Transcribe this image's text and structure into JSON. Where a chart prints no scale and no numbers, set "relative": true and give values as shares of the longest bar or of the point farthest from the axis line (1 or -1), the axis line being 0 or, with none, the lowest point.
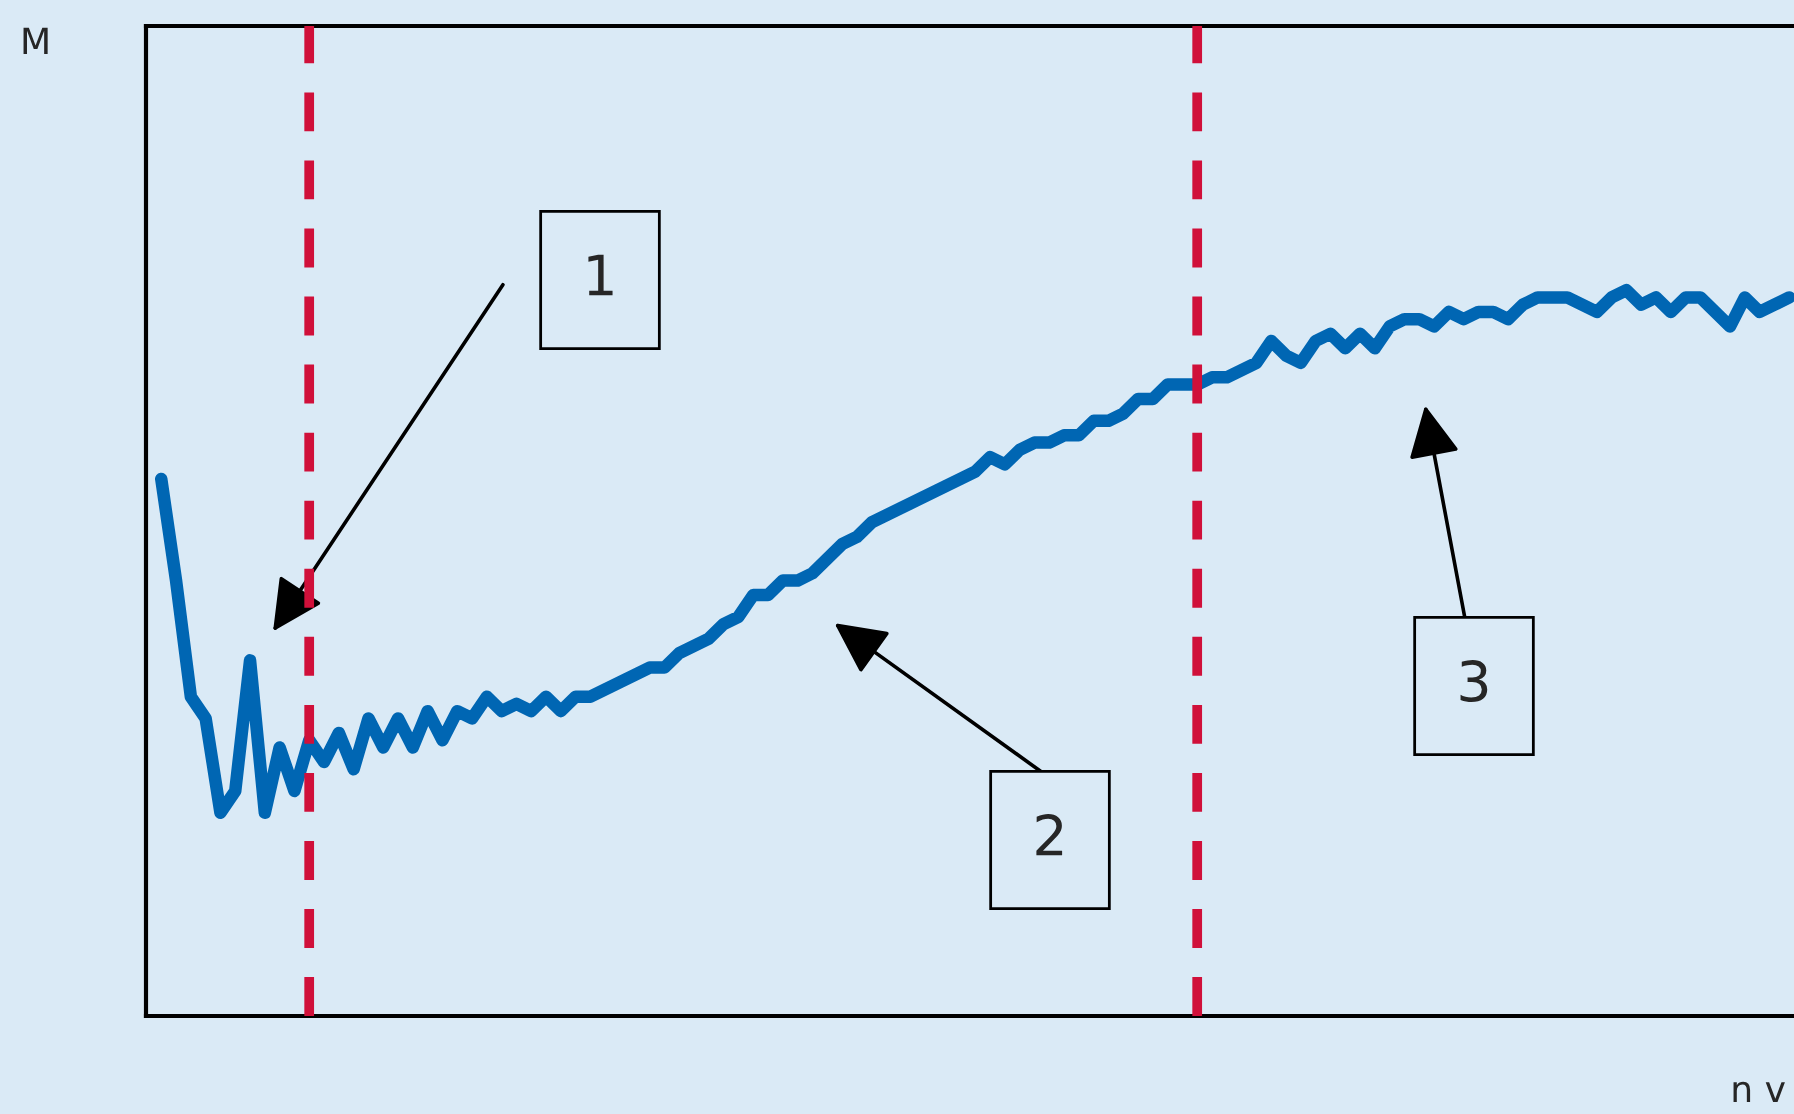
{
  "chart_data": {
    "type": "line",
    "relative": true,
    "xlabel": "n v",
    "categories": [
      null,
      null,
      null,
      null,
      null,
      null,
      null,
      null,
      null,
      null,
      null,
      null,
      null,
      null,
      null,
      null,
      null,
      null,
      null,
      null,
      null,
      null,
      null,
      null,
      null,
      null,
      null,
      null,
      null,
      null,
      null,
      null,
      null,
      null,
      null,
      null,
      null,
      null,
      null,
      null,
      null,
      null,
      null,
      null,
      null,
      null,
      null,
      null,
      null,
      null,
      null,
      null,
      null,
      null,
      null,
      null,
      null,
      null,
      null,
      null,
      null,
      null,
      null,
      null,
      null,
      null,
      null,
      null,
      null,
      null,
      null,
      null,
      null,
      null,
      null,
      null,
      null,
      null,
      null,
      null,
      null,
      null,
      null,
      null,
      null,
      null,
      null,
      null,
      null,
      null,
      null,
      null,
      null,
      null,
      null,
      null,
      null,
      null,
      null,
      null,
      null,
      null,
      null,
      null,
      null,
      null,
      null,
      null,
      null,
      null,
      null
    ],
    "series": [
      {
        "color": "#0066b3",
        "values": [
          0.74,
          0.6,
          0.44,
          0.41,
          0.28,
          0.31,
          0.49,
          0.28,
          0.37,
          0.31,
          0.38,
          0.35,
          0.39,
          0.34,
          0.41,
          0.37,
          0.41,
          0.37,
          0.42,
          0.38,
          0.42,
          0.41,
          0.44,
          0.42,
          0.43,
          0.42,
          0.44,
          0.42,
          0.44,
          0.44,
          0.45,
          0.46,
          0.47,
          0.48,
          0.48,
          0.5,
          0.51,
          0.52,
          0.54,
          0.55,
          0.58,
          0.58,
          0.6,
          0.6,
          0.61,
          0.63,
          0.65,
          0.66,
          0.68,
          0.69,
          0.7,
          0.71,
          0.72,
          0.73,
          0.74,
          0.75,
          0.77,
          0.76,
          0.78,
          0.79,
          0.79,
          0.8,
          0.8,
          0.82,
          0.82,
          0.83,
          0.85,
          0.85,
          0.87,
          0.87,
          0.87,
          0.88,
          0.88,
          0.89,
          0.9,
          0.93,
          0.91,
          0.9,
          0.93,
          0.94,
          0.92,
          0.94,
          0.92,
          0.95,
          0.96,
          0.96,
          0.95,
          0.97,
          0.96,
          0.97,
          0.97,
          0.96,
          0.98,
          0.99,
          0.99,
          0.99,
          0.98,
          0.97,
          0.99,
          1,
          0.98,
          0.99,
          0.97,
          0.99,
          0.99,
          0.97,
          0.95,
          0.99,
          0.97,
          0.98,
          0.99
        ]
      }
    ],
    "annotations": [
      "M",
      "1",
      "2",
      "3"
    ]
  }
}
